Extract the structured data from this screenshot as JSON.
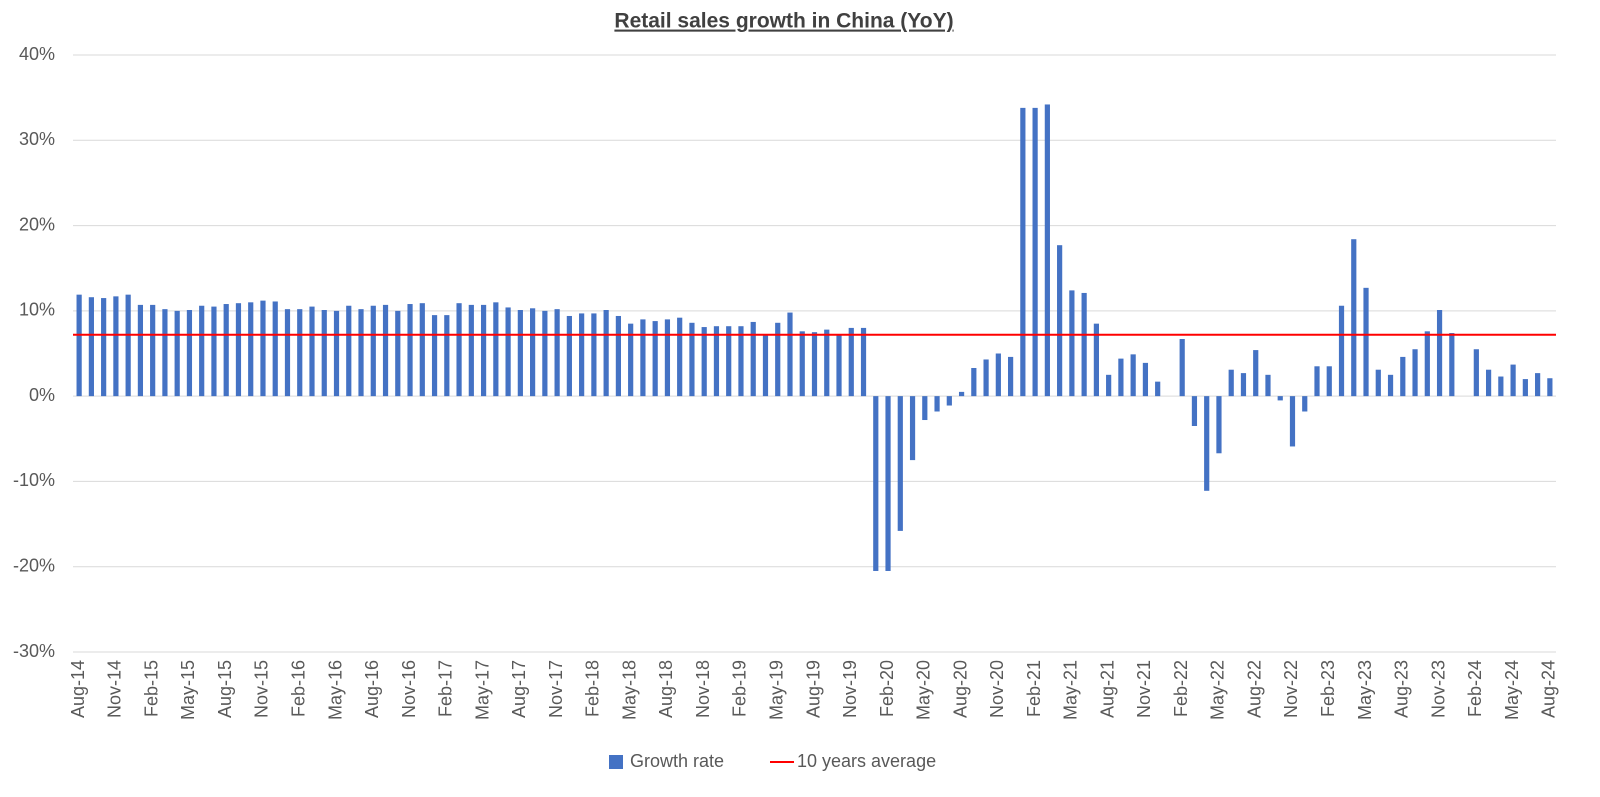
{
  "chart_data": {
    "type": "bar",
    "title": "Retail sales growth in China (YoY)",
    "categories": [
      "Aug-14",
      null,
      null,
      "Nov-14",
      null,
      null,
      "Feb-15",
      null,
      null,
      "May-15",
      null,
      null,
      "Aug-15",
      null,
      null,
      "Nov-15",
      null,
      null,
      "Feb-16",
      null,
      null,
      "May-16",
      null,
      null,
      "Aug-16",
      null,
      null,
      "Nov-16",
      null,
      null,
      "Feb-17",
      null,
      null,
      "May-17",
      null,
      null,
      "Aug-17",
      null,
      null,
      "Nov-17",
      null,
      null,
      "Feb-18",
      null,
      null,
      "May-18",
      null,
      null,
      "Aug-18",
      null,
      null,
      "Nov-18",
      null,
      null,
      "Feb-19",
      null,
      null,
      "May-19",
      null,
      null,
      "Aug-19",
      null,
      null,
      "Nov-19",
      null,
      null,
      "Feb-20",
      null,
      null,
      "May-20",
      null,
      null,
      "Aug-20",
      null,
      null,
      "Nov-20",
      null,
      null,
      "Feb-21",
      null,
      null,
      "May-21",
      null,
      null,
      "Aug-21",
      null,
      null,
      "Nov-21",
      null,
      null,
      "Feb-22",
      null,
      null,
      "May-22",
      null,
      null,
      "Aug-22",
      null,
      null,
      "Nov-22",
      null,
      null,
      "Feb-23",
      null,
      null,
      "May-23",
      null,
      null,
      "Aug-23",
      null,
      null,
      "Nov-23",
      null,
      null,
      "Feb-24",
      null,
      null,
      "May-24",
      null,
      null,
      "Aug-24"
    ],
    "series": [
      {
        "name": "Growth rate",
        "color": "#4472c4",
        "values": [
          11.9,
          11.6,
          11.5,
          11.7,
          11.9,
          10.7,
          10.7,
          10.2,
          10.0,
          10.1,
          10.6,
          10.5,
          10.8,
          10.9,
          11.0,
          11.2,
          11.1,
          10.2,
          10.2,
          10.5,
          10.1,
          10.0,
          10.6,
          10.2,
          10.6,
          10.7,
          10.0,
          10.8,
          10.9,
          9.5,
          9.5,
          10.9,
          10.7,
          10.7,
          11.0,
          10.4,
          10.1,
          10.3,
          10.0,
          10.2,
          9.4,
          9.7,
          9.7,
          10.1,
          9.4,
          8.5,
          9.0,
          8.8,
          9.0,
          9.2,
          8.6,
          8.1,
          8.2,
          8.2,
          8.2,
          8.7,
          7.2,
          8.6,
          9.8,
          7.6,
          7.5,
          7.8,
          7.2,
          8.0,
          8.0,
          -20.5,
          -20.5,
          -15.8,
          -7.5,
          -2.8,
          -1.8,
          -1.1,
          0.5,
          3.3,
          4.3,
          5.0,
          4.6,
          33.8,
          33.8,
          34.2,
          17.7,
          12.4,
          12.1,
          8.5,
          2.5,
          4.4,
          4.9,
          3.9,
          1.7,
          null,
          6.7,
          -3.5,
          -11.1,
          -6.7,
          3.1,
          2.7,
          5.4,
          2.5,
          -0.5,
          -5.9,
          -1.8,
          3.5,
          3.5,
          10.6,
          18.4,
          12.7,
          3.1,
          2.5,
          4.6,
          5.5,
          7.6,
          10.1,
          7.4,
          null,
          5.5,
          3.1,
          2.3,
          3.7,
          2.0,
          2.7,
          2.1
        ]
      }
    ],
    "reference_line": {
      "name": "10 years average",
      "color": "#ff0000",
      "value": 7.2
    },
    "ylim": [
      -30,
      40
    ],
    "yticks": [
      {
        "value": -30,
        "label": "-30%"
      },
      {
        "value": -20,
        "label": "-20%"
      },
      {
        "value": -10,
        "label": "-10%"
      },
      {
        "value": 0,
        "label": "0%"
      },
      {
        "value": 10,
        "label": "10%"
      },
      {
        "value": 20,
        "label": "20%"
      },
      {
        "value": 30,
        "label": "30%"
      },
      {
        "value": 40,
        "label": "40%"
      }
    ],
    "grid": true,
    "legend": "bottom"
  }
}
